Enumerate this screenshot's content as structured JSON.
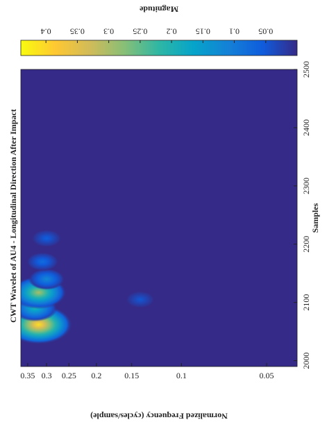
{
  "chart_data": {
    "type": "heatmap",
    "title": "CWT Wavelet of AU4 - Longitudinal Direction After Impact",
    "x_label": "Samples",
    "y_label": "Normalized Frequency (cycles/sample)",
    "colorbar_label": "Magnitude",
    "xlim": [
      1990,
      2500
    ],
    "xticks": [
      2000,
      2100,
      2200,
      2300,
      2400,
      2500
    ],
    "ylim": [
      0.039,
      0.37
    ],
    "yticks": [
      0.05,
      0.1,
      0.15,
      0.2,
      0.25,
      0.3,
      0.35
    ],
    "y_log": true,
    "clim": [
      0,
      0.44
    ],
    "cticks": [
      0.05,
      0.1,
      0.15,
      0.2,
      0.25,
      0.3,
      0.35,
      0.4
    ],
    "colormap": [
      "#352a87",
      "#0f5cdd",
      "#1481d6",
      "#06a4ca",
      "#2eb7a4",
      "#87bf77",
      "#d1bb59",
      "#fec832",
      "#f9fb0e"
    ],
    "hotspots": [
      {
        "sample": 2062,
        "frequency": 0.32,
        "magnitude": 0.41
      },
      {
        "sample": 2090,
        "frequency": 0.33,
        "magnitude": 0.2
      },
      {
        "sample": 2117,
        "frequency": 0.32,
        "magnitude": 0.3
      },
      {
        "sample": 2140,
        "frequency": 0.3,
        "magnitude": 0.12
      },
      {
        "sample": 2170,
        "frequency": 0.31,
        "magnitude": 0.08
      },
      {
        "sample": 2210,
        "frequency": 0.3,
        "magnitude": 0.06
      },
      {
        "sample": 2105,
        "frequency": 0.14,
        "magnitude": 0.05
      }
    ]
  }
}
